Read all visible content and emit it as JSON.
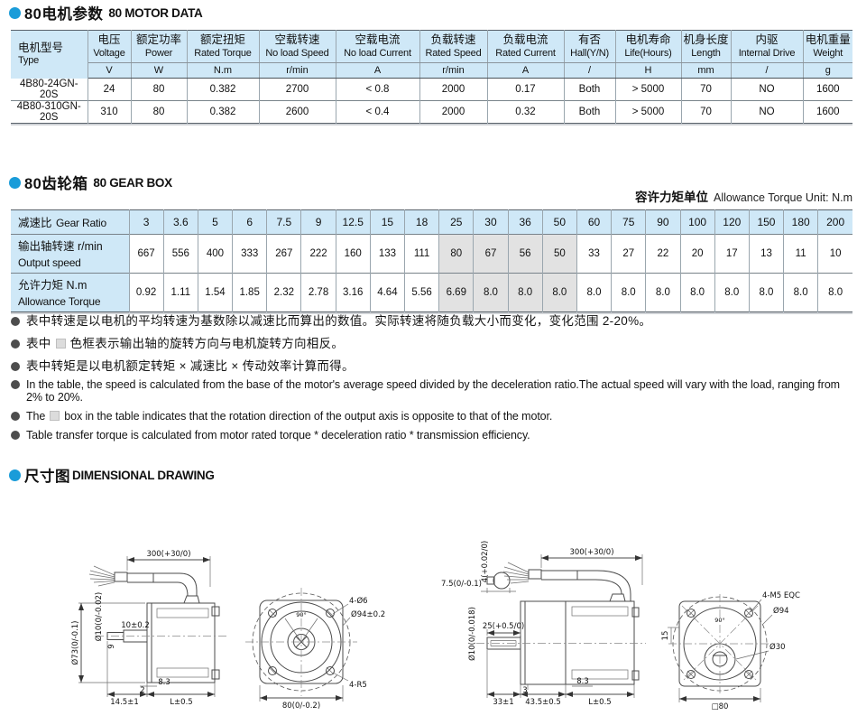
{
  "colors": {
    "accent": "#1a9cd9",
    "header_bg": "#cfe8f7",
    "reversed_cell": "#e2e2e2"
  },
  "sections": {
    "motor": {
      "title_zh": "80电机参数",
      "title_en": "80 MOTOR DATA"
    },
    "gearbox": {
      "title_zh": "80齿轮箱",
      "title_en": "80 GEAR BOX",
      "unit_label_zh": "容许力矩单位",
      "unit_label_en": "Allowance Torque Unit: N.m"
    },
    "drawing": {
      "title_zh": "尺寸图",
      "title_en": "DIMENSIONAL DRAWING"
    }
  },
  "motor_table": {
    "columns": [
      {
        "zh": "电机型号",
        "en": "Type",
        "unit": null
      },
      {
        "zh": "电压",
        "en": "Voltage",
        "unit": "V"
      },
      {
        "zh": "额定功率",
        "en": "Power",
        "unit": "W"
      },
      {
        "zh": "额定扭矩",
        "en": "Rated Torque",
        "unit": "N.m"
      },
      {
        "zh": "空载转速",
        "en": "No load Speed",
        "unit": "r/min"
      },
      {
        "zh": "空载电流",
        "en": "No load Current",
        "unit": "A"
      },
      {
        "zh": "负载转速",
        "en": "Rated Speed",
        "unit": "r/min"
      },
      {
        "zh": "负载电流",
        "en": "Rated Current",
        "unit": "A"
      },
      {
        "zh": "有否",
        "en": "Hall(Y/N)",
        "unit": "/"
      },
      {
        "zh": "电机寿命",
        "en": "Life(Hours)",
        "unit": "H"
      },
      {
        "zh": "机身长度",
        "en": "Length",
        "unit": "mm"
      },
      {
        "zh": "内驱",
        "en": "Internal Drive",
        "unit": "/"
      },
      {
        "zh": "电机重量",
        "en": "Weight",
        "unit": "g"
      }
    ],
    "rows": [
      [
        "4B80-24GN-20S",
        "24",
        "80",
        "0.382",
        "2700",
        "< 0.8",
        "2000",
        "0.17",
        "Both",
        "> 5000",
        "70",
        "NO",
        "1600"
      ],
      [
        "4B80-310GN-20S",
        "310",
        "80",
        "0.382",
        "2600",
        "< 0.4",
        "2000",
        "0.32",
        "Both",
        "> 5000",
        "70",
        "NO",
        "1600"
      ]
    ]
  },
  "gear_table": {
    "rows": [
      {
        "label_zh": "减速比",
        "label_en": "Gear Ratio",
        "two_line": false,
        "values": [
          "3",
          "3.6",
          "5",
          "6",
          "7.5",
          "9",
          "12.5",
          "15",
          "18",
          "25",
          "30",
          "36",
          "50",
          "60",
          "75",
          "90",
          "100",
          "120",
          "150",
          "180",
          "200"
        ]
      },
      {
        "label_zh": "输出轴转速 r/min",
        "label_en": "Output speed",
        "two_line": true,
        "values": [
          "667",
          "556",
          "400",
          "333",
          "267",
          "222",
          "160",
          "133",
          "111",
          "80",
          "67",
          "56",
          "50",
          "33",
          "27",
          "22",
          "20",
          "17",
          "13",
          "11",
          "10"
        ]
      },
      {
        "label_zh": "允许力矩  N.m",
        "label_en": "Allowance Torque",
        "two_line": true,
        "values": [
          "0.92",
          "1.11",
          "1.54",
          "1.85",
          "2.32",
          "2.78",
          "3.16",
          "4.64",
          "5.56",
          "6.69",
          "8.0",
          "8.0",
          "8.0",
          "8.0",
          "8.0",
          "8.0",
          "8.0",
          "8.0",
          "8.0",
          "8.0",
          "8.0"
        ]
      }
    ],
    "reversed_columns": [
      9,
      10,
      11,
      12
    ]
  },
  "notes": [
    {
      "lang": "zh",
      "has_box": false,
      "text": "表中转速是以电机的平均转速为基数除以减速比而算出的数值。实际转速将随负载大小而变化，变化范围 2-20%。"
    },
    {
      "lang": "zh",
      "has_box": true,
      "prefix": "表中",
      "suffix": "色框表示输出轴的旋转方向与电机旋转方向相反。"
    },
    {
      "lang": "zh",
      "has_box": false,
      "text": "表中转矩是以电机额定转矩 × 减速比 × 传动效率计算而得。"
    },
    {
      "lang": "en",
      "has_box": false,
      "text": "In the table, the speed is calculated from the base of the motor's average speed  divided by the deceleration ratio.The actual speed will vary with the load, ranging from 2% to 20%."
    },
    {
      "lang": "en",
      "has_box": true,
      "prefix": "The",
      "suffix": "box in the table indicates that the rotation direction of the output axis is opposite to that of the motor."
    },
    {
      "lang": "en",
      "has_box": false,
      "text": "Table transfer torque is calculated from motor rated torque * deceleration ratio * transmission efficiency."
    }
  ],
  "drawing_labels": {
    "a_cable": "300(+30/0)",
    "a_d73": "Ø73(0/-0.1)",
    "a_d10": "Ø10(0/-0.02)",
    "a_len10": "10±0.2",
    "a_len9": "9",
    "a_n2": "2",
    "a_n83": "8.3",
    "a_n145": "14.5±1",
    "a_L": "L±0.5",
    "b_holes": "4-Ø6",
    "b_d94": "Ø94±0.2",
    "b_r5": "4-R5",
    "b_sq": "80(0/-0.2)",
    "b_angle": "90°",
    "c_key_h": "4(+0.02/0)",
    "c_key_w": "7.5(0/-0.1)",
    "c_cable": "300(+30/0)",
    "c_d10": "Ø10(0/-0.018)",
    "c_len25": "25(+0.5/0)",
    "c_n3": "3",
    "c_n83": "8.3",
    "c_n33": "33±1",
    "c_n435": "43.5±0.5",
    "c_L": "L±0.5",
    "d_holes": "4-M5 EQC",
    "d_d94": "Ø94",
    "d_d30": "Ø30",
    "d_angle": "90°",
    "d_sq": "□80",
    "d_n15": "15"
  }
}
